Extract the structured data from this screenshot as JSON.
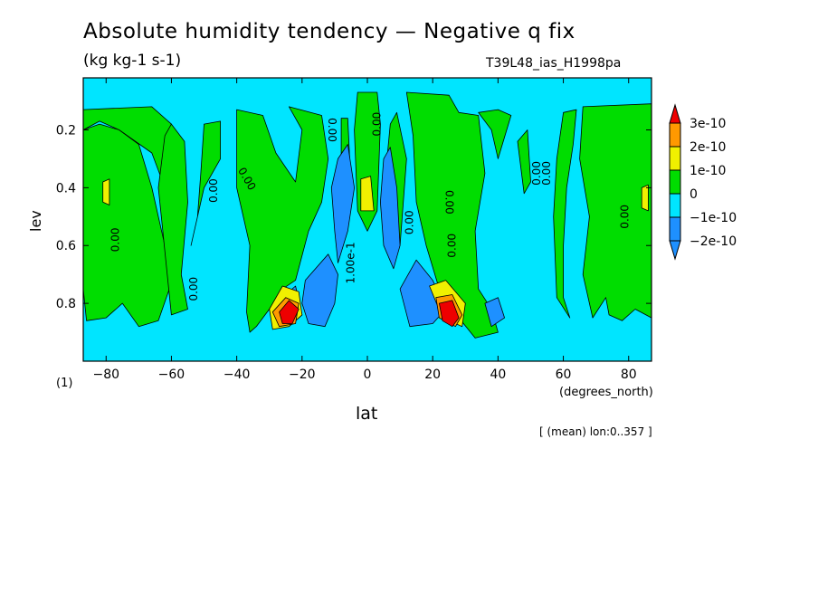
{
  "header": {
    "title": "Absolute humidity tendency — Negative q fix",
    "units": "(kg kg-1 s-1)",
    "run_id": "T39L48_ias_H1998pa",
    "plot_label": "(1)",
    "x_units": "(degrees_north)",
    "mean_note": "[ (mean) lon:0..357 ]"
  },
  "colors": {
    "level_lt_m2e10": "#1e90ff",
    "level_m2e10_m1e10": "#1e90ff",
    "level_m1e10_0": "#00e5ff",
    "level_0_1e10": "#00dd00",
    "level_1e10_2e10": "#f0f000",
    "level_2e10_3e10": "#ff9900",
    "level_gt_3e10": "#ee0000"
  },
  "chart_data": {
    "type": "heatmap",
    "xlabel": "lat",
    "ylabel": "lev",
    "xlim": [
      -87,
      87
    ],
    "ylim": [
      1.0,
      0.02
    ],
    "x_ticks": [
      -80,
      -60,
      -40,
      -20,
      0,
      20,
      40,
      60,
      80
    ],
    "y_ticks": [
      0.2,
      0.4,
      0.6,
      0.8
    ],
    "x_tick_labels": [
      "−80",
      "−60",
      "−40",
      "−20",
      "0",
      "20",
      "40",
      "60",
      "80"
    ],
    "y_tick_labels": [
      "0.2",
      "0.4",
      "0.6",
      "0.8"
    ],
    "colorbar": {
      "labels": [
        "3e-10",
        "2e-10",
        "1e-10",
        "0",
        "−1e-10",
        "−2e-10"
      ],
      "level_values": [
        3e-10,
        2e-10,
        1e-10,
        0,
        -1e-10,
        -2e-10
      ]
    },
    "background_level": "level_m1e10_0",
    "regions": [
      {
        "level": "level_0_1e10",
        "points": [
          [
            -87,
            0.2
          ],
          [
            -82,
            0.18
          ],
          [
            -76,
            0.2
          ],
          [
            -70,
            0.25
          ],
          [
            -66,
            0.4
          ],
          [
            -62,
            0.6
          ],
          [
            -60,
            0.73
          ],
          [
            -64,
            0.86
          ],
          [
            -70,
            0.88
          ],
          [
            -75,
            0.8
          ],
          [
            -80,
            0.85
          ],
          [
            -86,
            0.86
          ],
          [
            -87,
            0.75
          ]
        ]
      },
      {
        "level": "level_0_1e10",
        "points": [
          [
            -87,
            0.13
          ],
          [
            -66,
            0.12
          ],
          [
            -60,
            0.18
          ],
          [
            -62,
            0.4
          ],
          [
            -66,
            0.28
          ],
          [
            -76,
            0.2
          ],
          [
            -82,
            0.17
          ],
          [
            -87,
            0.2
          ]
        ]
      },
      {
        "level": "level_0_1e10",
        "points": [
          [
            -62,
            0.22
          ],
          [
            -60,
            0.18
          ],
          [
            -56,
            0.24
          ],
          [
            -55,
            0.45
          ],
          [
            -57,
            0.7
          ],
          [
            -55,
            0.82
          ],
          [
            -60,
            0.84
          ],
          [
            -62,
            0.62
          ],
          [
            -64,
            0.4
          ]
        ]
      },
      {
        "level": "level_0_1e10",
        "points": [
          [
            -50,
            0.18
          ],
          [
            -45,
            0.17
          ],
          [
            -45,
            0.3
          ],
          [
            -50,
            0.4
          ],
          [
            -54,
            0.6
          ],
          [
            -52,
            0.5
          ],
          [
            -51,
            0.35
          ]
        ]
      },
      {
        "level": "level_0_1e10",
        "points": [
          [
            -40,
            0.13
          ],
          [
            -32,
            0.15
          ],
          [
            -28,
            0.28
          ],
          [
            -22,
            0.38
          ],
          [
            -20,
            0.2
          ],
          [
            -24,
            0.12
          ],
          [
            -14,
            0.15
          ],
          [
            -12,
            0.3
          ],
          [
            -14,
            0.45
          ],
          [
            -18,
            0.55
          ],
          [
            -22,
            0.72
          ],
          [
            -26,
            0.75
          ],
          [
            -30,
            0.82
          ],
          [
            -34,
            0.88
          ],
          [
            -36,
            0.9
          ],
          [
            -37,
            0.83
          ],
          [
            -36,
            0.6
          ],
          [
            -40,
            0.4
          ]
        ]
      },
      {
        "level": "level_0_1e10",
        "points": [
          [
            -8,
            0.16
          ],
          [
            -6,
            0.16
          ],
          [
            -5,
            0.4
          ],
          [
            -7,
            0.48
          ],
          [
            -8,
            0.3
          ]
        ]
      },
      {
        "level": "level_0_1e10",
        "points": [
          [
            -3,
            0.07
          ],
          [
            3,
            0.07
          ],
          [
            4,
            0.18
          ],
          [
            3,
            0.48
          ],
          [
            0,
            0.55
          ],
          [
            -3,
            0.48
          ],
          [
            -4,
            0.2
          ]
        ]
      },
      {
        "level": "level_0_1e10",
        "points": [
          [
            7,
            0.18
          ],
          [
            9,
            0.14
          ],
          [
            12,
            0.3
          ],
          [
            10,
            0.6
          ],
          [
            7,
            0.48
          ],
          [
            6,
            0.3
          ]
        ]
      },
      {
        "level": "level_0_1e10",
        "points": [
          [
            12,
            0.07
          ],
          [
            25,
            0.08
          ],
          [
            28,
            0.14
          ],
          [
            34,
            0.15
          ],
          [
            36,
            0.35
          ],
          [
            33,
            0.55
          ],
          [
            34,
            0.75
          ],
          [
            38,
            0.82
          ],
          [
            40,
            0.9
          ],
          [
            33,
            0.92
          ],
          [
            28,
            0.85
          ],
          [
            22,
            0.75
          ],
          [
            18,
            0.6
          ],
          [
            15,
            0.45
          ],
          [
            14,
            0.22
          ]
        ]
      },
      {
        "level": "level_0_1e10",
        "points": [
          [
            34,
            0.14
          ],
          [
            40,
            0.13
          ],
          [
            44,
            0.15
          ],
          [
            40,
            0.3
          ],
          [
            38,
            0.2
          ]
        ]
      },
      {
        "level": "level_0_1e10",
        "points": [
          [
            46,
            0.24
          ],
          [
            49,
            0.2
          ],
          [
            50,
            0.38
          ],
          [
            48,
            0.42
          ]
        ]
      },
      {
        "level": "level_0_1e10",
        "points": [
          [
            60,
            0.14
          ],
          [
            64,
            0.13
          ],
          [
            63,
            0.25
          ],
          [
            61,
            0.4
          ],
          [
            60,
            0.6
          ],
          [
            60,
            0.78
          ],
          [
            62,
            0.85
          ],
          [
            58,
            0.78
          ],
          [
            57,
            0.5
          ],
          [
            58,
            0.3
          ]
        ]
      },
      {
        "level": "level_0_1e10",
        "points": [
          [
            66,
            0.12
          ],
          [
            87,
            0.11
          ],
          [
            87,
            0.85
          ],
          [
            82,
            0.82
          ],
          [
            78,
            0.86
          ],
          [
            74,
            0.84
          ],
          [
            73,
            0.78
          ],
          [
            69,
            0.85
          ],
          [
            66,
            0.7
          ],
          [
            68,
            0.5
          ],
          [
            65,
            0.3
          ]
        ]
      },
      {
        "level": "level_m2e10_m1e10",
        "points": [
          [
            -9,
            0.3
          ],
          [
            -6,
            0.25
          ],
          [
            -4,
            0.4
          ],
          [
            -6,
            0.55
          ],
          [
            -9,
            0.66
          ],
          [
            -10,
            0.55
          ],
          [
            -11,
            0.4
          ]
        ]
      },
      {
        "level": "level_m2e10_m1e10",
        "points": [
          [
            -19,
            0.72
          ],
          [
            -12,
            0.63
          ],
          [
            -9,
            0.7
          ],
          [
            -10,
            0.8
          ],
          [
            -13,
            0.88
          ],
          [
            -18,
            0.87
          ],
          [
            -20,
            0.8
          ]
        ]
      },
      {
        "level": "level_m2e10_m1e10",
        "points": [
          [
            -26,
            0.78
          ],
          [
            -22,
            0.74
          ],
          [
            -20,
            0.84
          ],
          [
            -24,
            0.88
          ]
        ]
      },
      {
        "level": "level_m2e10_m1e10",
        "points": [
          [
            5,
            0.3
          ],
          [
            7,
            0.26
          ],
          [
            9,
            0.4
          ],
          [
            10,
            0.6
          ],
          [
            8,
            0.68
          ],
          [
            5,
            0.6
          ],
          [
            4,
            0.45
          ]
        ]
      },
      {
        "level": "level_m2e10_m1e10",
        "points": [
          [
            10,
            0.75
          ],
          [
            15,
            0.65
          ],
          [
            20,
            0.72
          ],
          [
            24,
            0.82
          ],
          [
            20,
            0.87
          ],
          [
            13,
            0.88
          ]
        ]
      },
      {
        "level": "level_m2e10_m1e10",
        "points": [
          [
            36,
            0.8
          ],
          [
            40,
            0.78
          ],
          [
            42,
            0.85
          ],
          [
            38,
            0.88
          ]
        ]
      },
      {
        "level": "level_1e10_2e10",
        "points": [
          [
            -30,
            0.82
          ],
          [
            -26,
            0.74
          ],
          [
            -21,
            0.76
          ],
          [
            -20,
            0.84
          ],
          [
            -24,
            0.88
          ],
          [
            -29,
            0.89
          ]
        ]
      },
      {
        "level": "level_1e10_2e10",
        "points": [
          [
            19,
            0.74
          ],
          [
            24,
            0.72
          ],
          [
            30,
            0.8
          ],
          [
            29,
            0.88
          ],
          [
            23,
            0.85
          ]
        ]
      },
      {
        "level": "level_1e10_2e10",
        "points": [
          [
            -81,
            0.38
          ],
          [
            -79,
            0.37
          ],
          [
            -79,
            0.46
          ],
          [
            -81,
            0.45
          ]
        ]
      },
      {
        "level": "level_1e10_2e10",
        "points": [
          [
            -2,
            0.37
          ],
          [
            1,
            0.36
          ],
          [
            2,
            0.48
          ],
          [
            -2,
            0.48
          ]
        ]
      },
      {
        "level": "level_1e10_2e10",
        "points": [
          [
            84,
            0.4
          ],
          [
            86,
            0.39
          ],
          [
            86,
            0.48
          ],
          [
            84,
            0.47
          ]
        ]
      },
      {
        "level": "level_2e10_3e10",
        "points": [
          [
            -29,
            0.83
          ],
          [
            -25,
            0.78
          ],
          [
            -21,
            0.8
          ],
          [
            -22,
            0.87
          ],
          [
            -27,
            0.88
          ]
        ]
      },
      {
        "level": "level_2e10_3e10",
        "points": [
          [
            21,
            0.78
          ],
          [
            26,
            0.77
          ],
          [
            29,
            0.84
          ],
          [
            27,
            0.88
          ],
          [
            22,
            0.85
          ]
        ]
      },
      {
        "level": "level_gt_3e10",
        "points": [
          [
            -27,
            0.83
          ],
          [
            -24,
            0.79
          ],
          [
            -21,
            0.82
          ],
          [
            -23,
            0.87
          ],
          [
            -26,
            0.87
          ]
        ]
      },
      {
        "level": "level_gt_3e10",
        "points": [
          [
            22,
            0.8
          ],
          [
            26,
            0.79
          ],
          [
            28,
            0.85
          ],
          [
            26,
            0.88
          ],
          [
            23,
            0.86
          ]
        ]
      }
    ],
    "contour_labels": [
      {
        "text": "0.00",
        "lat": -37,
        "lev": 0.37,
        "rot": 60
      },
      {
        "text": "0.00",
        "lat": -47,
        "lev": 0.41,
        "rot": -90
      },
      {
        "text": "0.00",
        "lat": -77,
        "lev": 0.58,
        "rot": -90
      },
      {
        "text": "0.00",
        "lat": -53,
        "lev": 0.75,
        "rot": -90
      },
      {
        "text": "0.00",
        "lat": -11,
        "lev": 0.2,
        "rot": 90
      },
      {
        "text": "0.00",
        "lat": 3,
        "lev": 0.18,
        "rot": -90
      },
      {
        "text": "1.00e-1",
        "lat": -5,
        "lev": 0.66,
        "rot": -90
      },
      {
        "text": "0.00",
        "lat": 13,
        "lev": 0.52,
        "rot": -90
      },
      {
        "text": "0.00",
        "lat": 26,
        "lev": 0.6,
        "rot": -90
      },
      {
        "text": "0.00",
        "lat": 52,
        "lev": 0.35,
        "rot": -90
      },
      {
        "text": "0.00",
        "lat": 55,
        "lev": 0.35,
        "rot": -90
      },
      {
        "text": "0.00",
        "lat": 79,
        "lev": 0.5,
        "rot": -90
      },
      {
        "text": "0.00",
        "lat": 25,
        "lev": 0.45,
        "rot": 90
      }
    ]
  }
}
